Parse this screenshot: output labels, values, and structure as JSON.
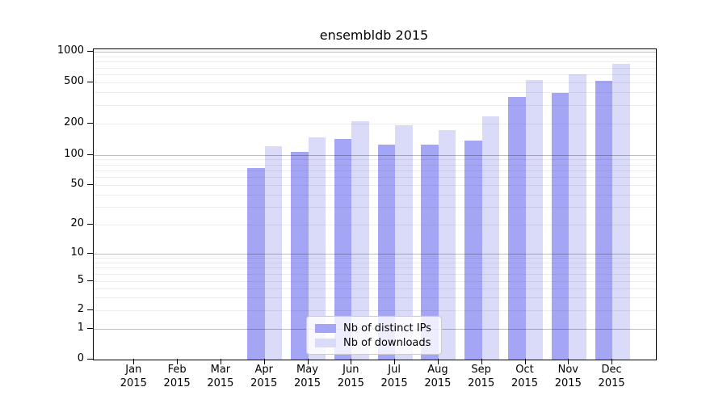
{
  "title": "ensembldb 2015",
  "legend": {
    "items": [
      {
        "label": "Nb of distinct IPs",
        "color": "#a5a5f6"
      },
      {
        "label": "Nb of downloads",
        "color": "#dadaf9"
      }
    ]
  },
  "chart_data": {
    "type": "bar",
    "title": "ensembldb 2015",
    "categories": [
      "Jan 2015",
      "Feb 2015",
      "Mar 2015",
      "Apr 2015",
      "May 2015",
      "Jun 2015",
      "Jul 2015",
      "Aug 2015",
      "Sep 2015",
      "Oct 2015",
      "Nov 2015",
      "Dec 2015"
    ],
    "series": [
      {
        "name": "Nb of distinct IPs",
        "color": "#a5a5f6",
        "values": [
          0,
          0,
          0,
          74,
          106,
          143,
          126,
          126,
          136,
          364,
          394,
          516
        ]
      },
      {
        "name": "Nb of downloads",
        "color": "#dadaf9",
        "values": [
          0,
          0,
          0,
          121,
          146,
          210,
          193,
          173,
          233,
          530,
          602,
          768
        ]
      }
    ],
    "xlabel": "",
    "ylabel": "",
    "yscale": "symlog",
    "ylim": [
      0,
      1000
    ],
    "yticks": [
      0,
      1,
      2,
      5,
      10,
      20,
      50,
      100,
      200,
      500,
      1000
    ],
    "grid": "horizontal, major and minor",
    "legend_position": "lower center"
  }
}
